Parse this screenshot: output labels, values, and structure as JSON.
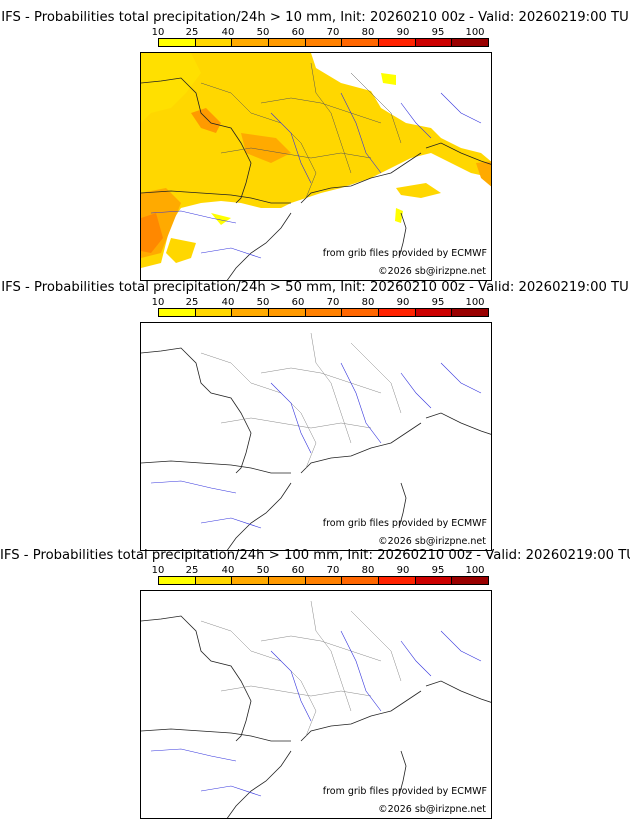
{
  "legend": {
    "labels": [
      "10",
      "25",
      "40",
      "50",
      "60",
      "70",
      "80",
      "90",
      "95",
      "100"
    ],
    "colors": [
      "#ffff00",
      "#ffd700",
      "#ffaa00",
      "#ff9900",
      "#ff8000",
      "#ff6600",
      "#ff2200",
      "#cc0000",
      "#990000",
      "#660000"
    ]
  },
  "panels": [
    {
      "title": "IFS - Probabilities total precipitation/24h > 10 mm, Init: 20260210 00z - Valid: 20260219:00 TU",
      "credit": "from grib files provided by ECMWF",
      "copyright": "©2026 sb@irizpne.net"
    },
    {
      "title": "IFS - Probabilities total precipitation/24h > 50 mm, Init: 20260210 00z - Valid: 20260219:00 TU",
      "credit": "from grib files provided by ECMWF",
      "copyright": "©2026 sb@irizpne.net"
    },
    {
      "title": "IFS - Probabilities total precipitation/24h > 100 mm, Init: 20260210 00z - Valid: 20260219:00 TU",
      "credit": "from grib files provided by ECMWF",
      "copyright": "©2026 sb@irizpne.net"
    }
  ]
}
